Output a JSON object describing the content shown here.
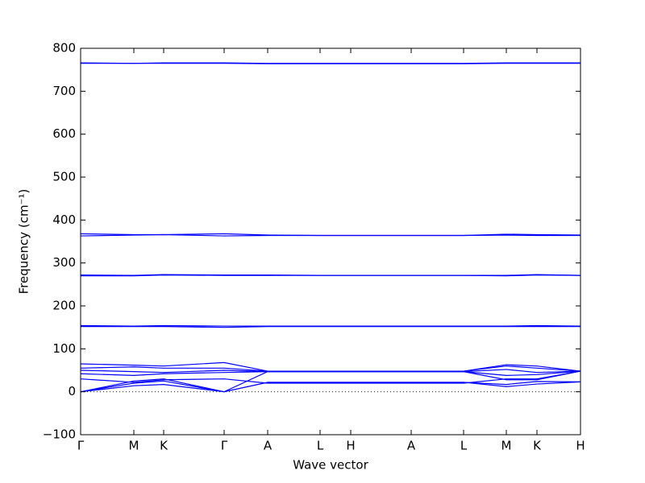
{
  "chart_data": {
    "type": "line",
    "x_label": "Wave vector",
    "y_label": "Frequency (cm⁻¹)",
    "xlim": [
      0,
      620
    ],
    "ylim": [
      -100,
      800
    ],
    "xticks": [
      {
        "value": 0,
        "label": "Γ"
      },
      {
        "value": 66,
        "label": "M"
      },
      {
        "value": 103,
        "label": "K"
      },
      {
        "value": 178,
        "label": "Γ"
      },
      {
        "value": 232,
        "label": "A"
      },
      {
        "value": 297,
        "label": "L"
      },
      {
        "value": 335,
        "label": "H"
      },
      {
        "value": 410,
        "label": "A"
      },
      {
        "value": 475,
        "label": "L"
      },
      {
        "value": 528,
        "label": "M"
      },
      {
        "value": 566,
        "label": "K"
      },
      {
        "value": 620,
        "label": "H"
      }
    ],
    "yticks": [
      {
        "value": -100,
        "label": "−100"
      },
      0,
      100,
      200,
      300,
      400,
      500,
      600,
      700,
      800
    ],
    "reference_line": 0,
    "color": "#0000ff",
    "x": [
      0,
      66,
      103,
      178,
      232,
      297,
      335,
      410,
      475,
      528,
      566,
      620
    ],
    "series": [
      {
        "values": [
          766,
          765,
          766,
          766,
          765,
          765,
          765,
          765,
          765,
          766,
          766,
          766
        ]
      },
      {
        "values": [
          765,
          765,
          765,
          765,
          764,
          764,
          764,
          764,
          764,
          765,
          765,
          765
        ]
      },
      {
        "values": [
          368,
          366,
          366,
          368,
          365,
          364,
          364,
          364,
          364,
          367,
          366,
          365
        ]
      },
      {
        "values": [
          363,
          365,
          366,
          363,
          364,
          364,
          364,
          364,
          364,
          365,
          364,
          364
        ]
      },
      {
        "values": [
          272,
          271,
          273,
          272,
          272,
          271,
          271,
          271,
          271,
          271,
          273,
          271
        ]
      },
      {
        "values": [
          270,
          270,
          272,
          271,
          271,
          271,
          271,
          271,
          271,
          270,
          272,
          271
        ]
      },
      {
        "values": [
          154,
          153,
          154,
          153,
          153,
          153,
          153,
          153,
          153,
          153,
          154,
          153
        ]
      },
      {
        "values": [
          152,
          152,
          152,
          150,
          152,
          152,
          152,
          152,
          152,
          152,
          152,
          152
        ]
      },
      {
        "values": [
          0,
          14,
          17,
          0,
          22,
          22,
          22,
          22,
          22,
          12,
          18,
          23
        ]
      },
      {
        "values": [
          0,
          20,
          25,
          0,
          22,
          22,
          22,
          22,
          22,
          17,
          24,
          23
        ]
      },
      {
        "values": [
          0,
          25,
          30,
          0,
          47,
          47,
          47,
          47,
          47,
          28,
          28,
          48
        ]
      },
      {
        "values": [
          30,
          22,
          28,
          30,
          20,
          20,
          20,
          20,
          20,
          30,
          30,
          48
        ]
      },
      {
        "values": [
          42,
          38,
          42,
          45,
          47,
          47,
          47,
          47,
          47,
          38,
          40,
          48
        ]
      },
      {
        "values": [
          50,
          47,
          45,
          50,
          47,
          47,
          47,
          47,
          47,
          52,
          45,
          48
        ]
      },
      {
        "values": [
          55,
          58,
          55,
          55,
          48,
          48,
          48,
          48,
          48,
          60,
          55,
          48
        ]
      },
      {
        "values": [
          65,
          62,
          60,
          68,
          48,
          48,
          48,
          48,
          48,
          63,
          60,
          48
        ]
      }
    ]
  }
}
